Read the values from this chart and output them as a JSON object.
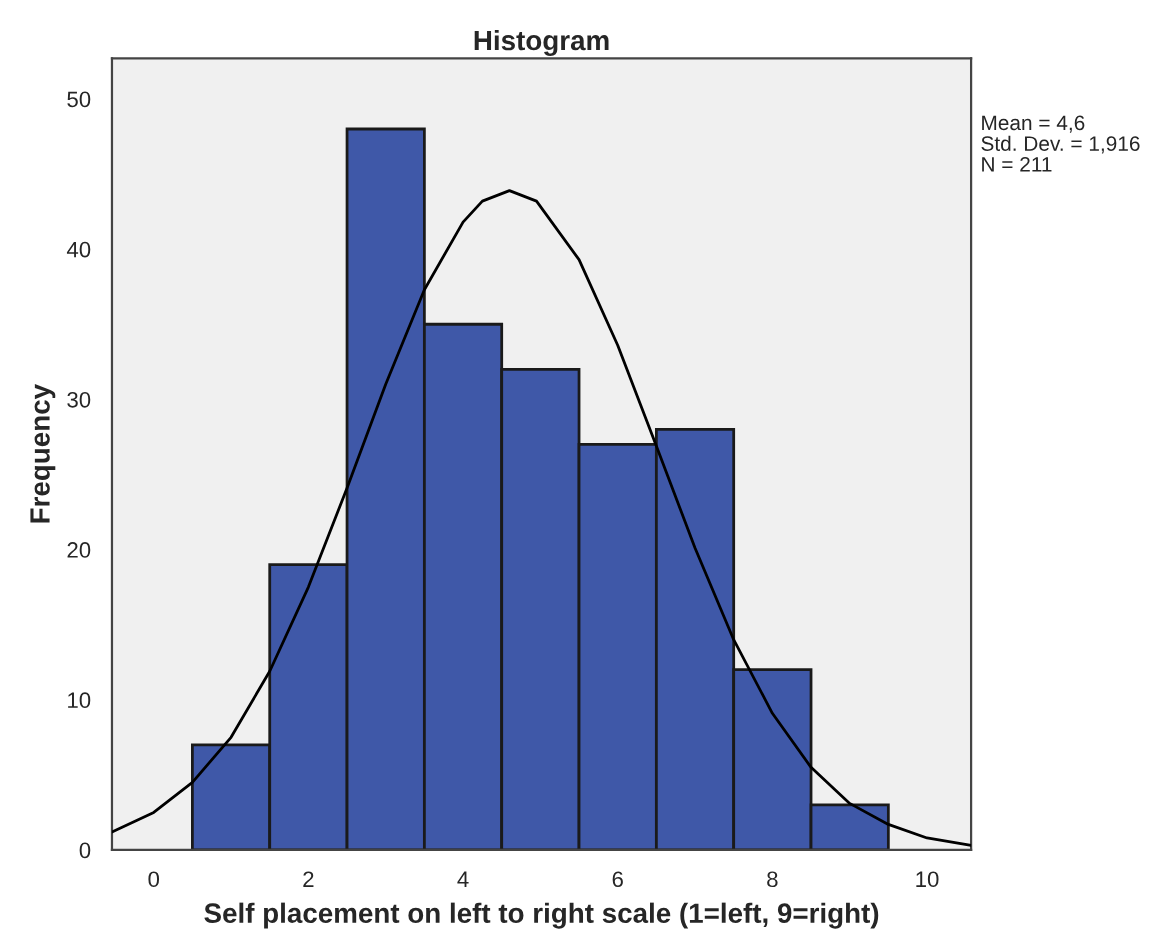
{
  "chart_data": {
    "type": "histogram",
    "title": "Histogram",
    "xlabel": "Self placement on left to right scale (1=left, 9=right)",
    "ylabel": "Frequency",
    "bins": [
      0.5,
      1.5,
      2.5,
      3.5,
      4.5,
      5.5,
      6.5,
      7.5,
      8.5,
      9.5
    ],
    "series": [
      {
        "color": "#3f58a8",
        "values": [
          7,
          19,
          48,
          35,
          32,
          27,
          28,
          12,
          3
        ]
      },
      {
        "type": "line",
        "color": "#000000",
        "x": [
          -0.54,
          0,
          0.5,
          1,
          1.5,
          2,
          2.5,
          3,
          3.5,
          4,
          4.25,
          4.6,
          4.95,
          5.5,
          6,
          6.5,
          7,
          7.5,
          8,
          8.5,
          9,
          9.5,
          10,
          10.57
        ],
        "values": [
          1.2,
          2.5,
          4.5,
          7.5,
          11.9,
          17.5,
          24.1,
          31.0,
          37.3,
          41.8,
          43.2,
          43.9,
          43.2,
          39.3,
          33.6,
          26.9,
          20.1,
          14.0,
          9.1,
          5.5,
          3.1,
          1.7,
          0.8,
          0.3
        ]
      }
    ],
    "xlim": [
      -0.54,
      10.57
    ],
    "xticks": [
      0,
      2,
      4,
      6,
      8,
      10
    ],
    "ylim": [
      0,
      52.7
    ],
    "yticks": [
      0,
      10,
      20,
      30,
      40,
      50
    ],
    "grid": false,
    "legend": false,
    "annotations": [
      "Mean = 4,6",
      "Std. Dev. = 1,916",
      "N = 211"
    ]
  }
}
